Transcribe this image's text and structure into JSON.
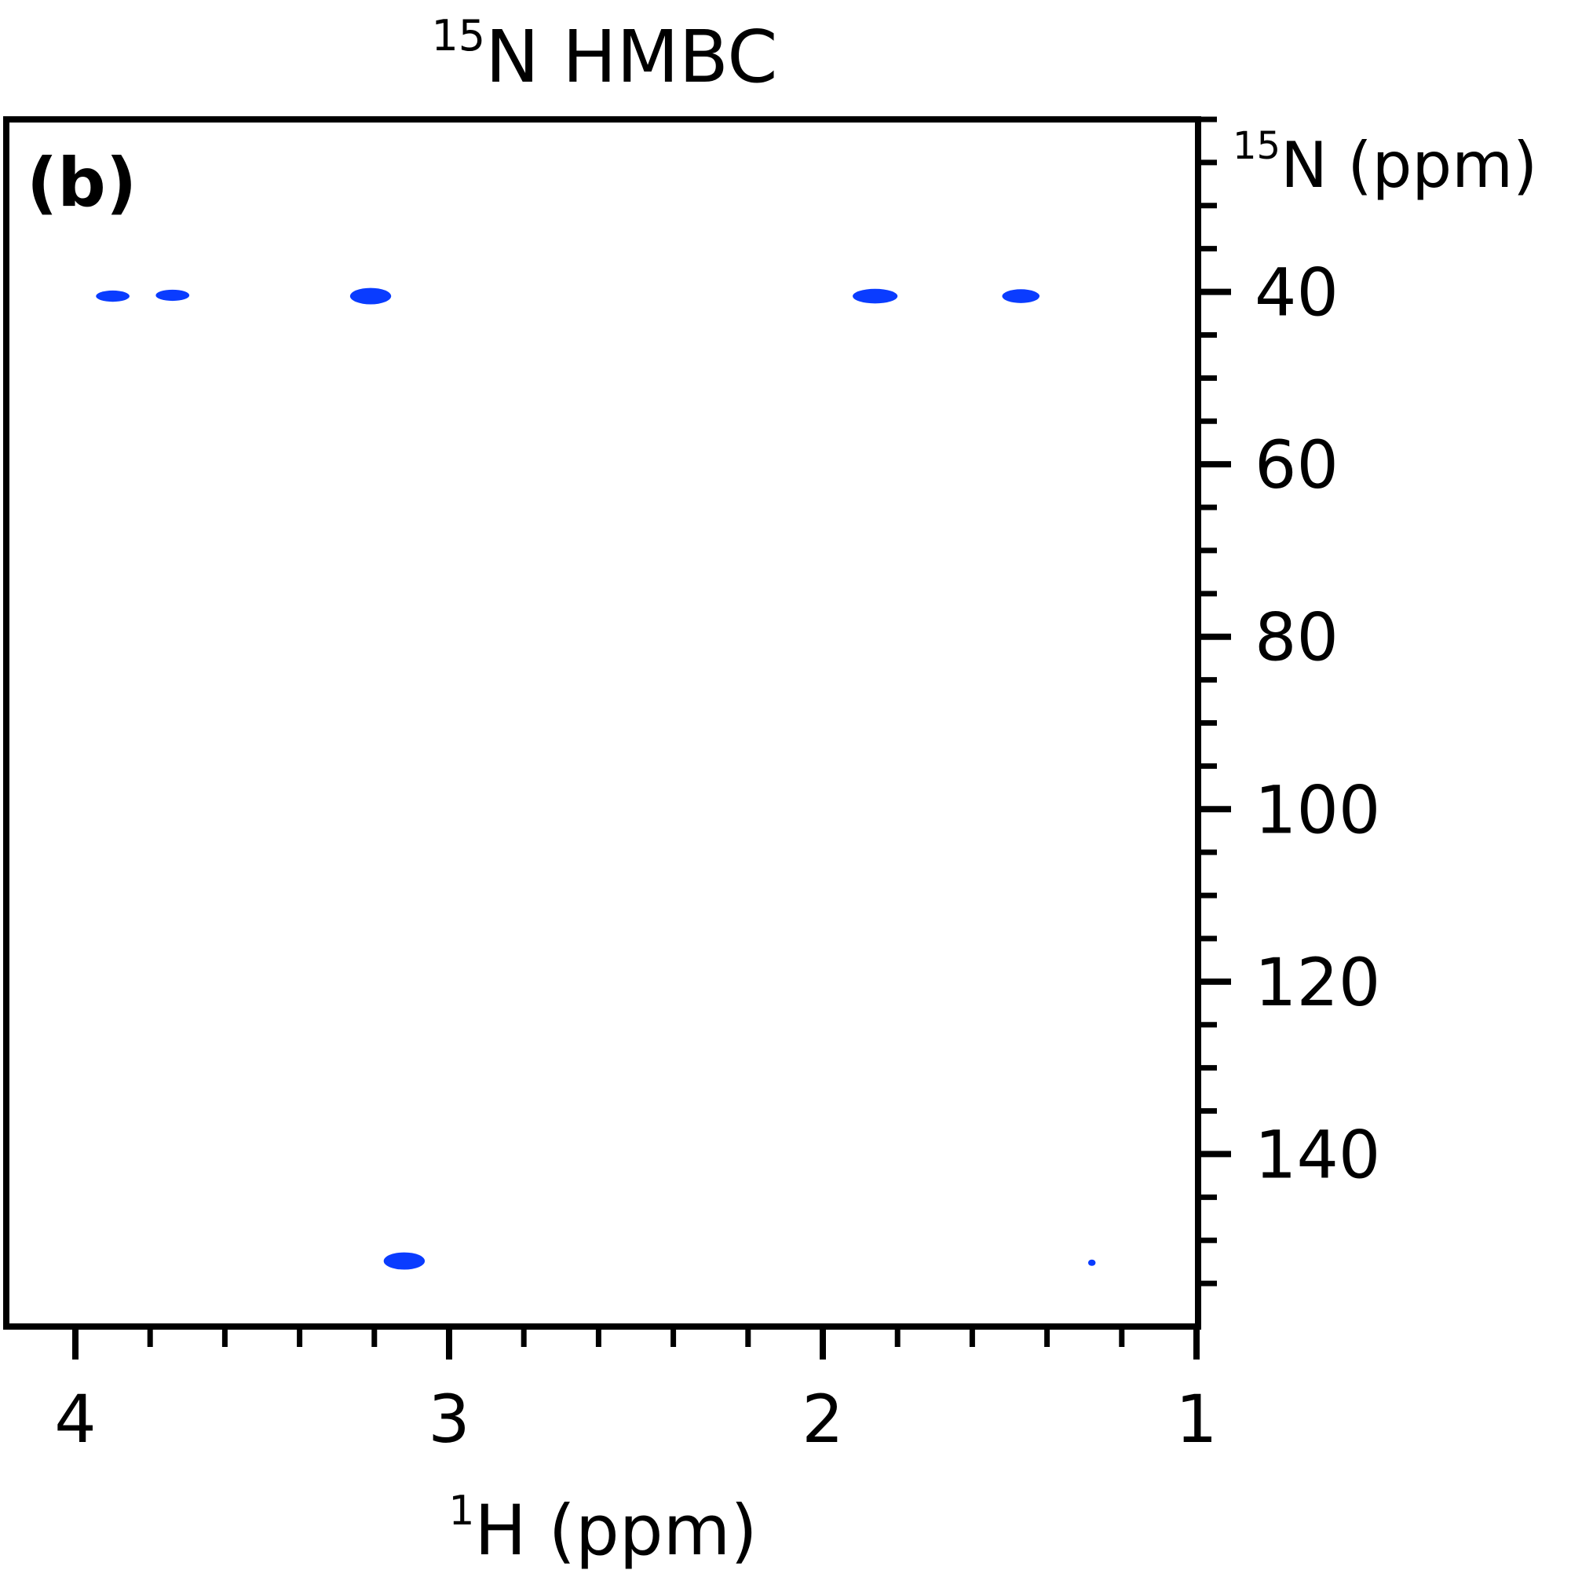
{
  "chart_data": {
    "type": "scatter",
    "title": {
      "superscript": "15",
      "main": "N HMBC"
    },
    "panel_label": "(b)",
    "xlabel": {
      "superscript": "1",
      "main": "H (ppm)"
    },
    "ylabel": {
      "superscript": "15",
      "main": "N (ppm)"
    },
    "xlim": [
      4.0,
      1.0
    ],
    "ylim": [
      20,
      160
    ],
    "x_ticks": [
      {
        "value": 4,
        "label": "4"
      },
      {
        "value": 3,
        "label": "3"
      },
      {
        "value": 2,
        "label": "2"
      },
      {
        "value": 1,
        "label": "1"
      }
    ],
    "x_minor_step": 0.2,
    "y_ticks": [
      {
        "value": 40,
        "label": "40"
      },
      {
        "value": 60,
        "label": "60"
      },
      {
        "value": 80,
        "label": "80"
      },
      {
        "value": 100,
        "label": "100"
      },
      {
        "value": 120,
        "label": "120"
      },
      {
        "value": 140,
        "label": "140"
      }
    ],
    "y_minor_step": 5,
    "grid": false,
    "peak_color": "#0a3cff",
    "peaks": [
      {
        "x": 3.9,
        "y": 40.5,
        "w": 0.09,
        "h": 1.3
      },
      {
        "x": 3.74,
        "y": 40.4,
        "w": 0.09,
        "h": 1.3
      },
      {
        "x": 3.21,
        "y": 40.5,
        "w": 0.11,
        "h": 1.9
      },
      {
        "x": 1.86,
        "y": 40.5,
        "w": 0.12,
        "h": 1.7
      },
      {
        "x": 1.47,
        "y": 40.5,
        "w": 0.1,
        "h": 1.6
      },
      {
        "x": 3.12,
        "y": 152.4,
        "w": 0.11,
        "h": 2.0
      },
      {
        "x": 1.28,
        "y": 152.6,
        "w": 0.02,
        "h": 0.6
      }
    ]
  }
}
